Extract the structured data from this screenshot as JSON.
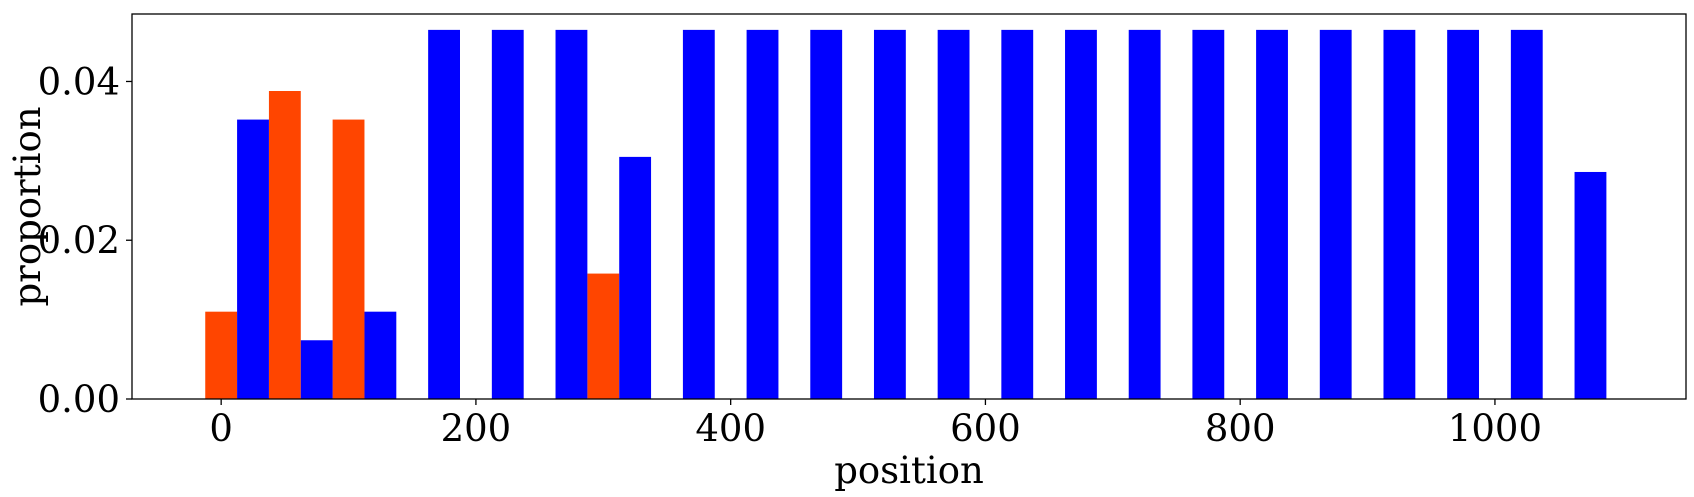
{
  "chart_data": {
    "type": "bar",
    "xlabel": "position",
    "ylabel": "proportion",
    "xlim": [
      -70,
      1150
    ],
    "ylim": [
      0,
      0.0485
    ],
    "grid": false,
    "bar_width": 25,
    "xticks": [
      0,
      200,
      400,
      600,
      800,
      1000
    ],
    "xtick_labels": [
      "0",
      "200",
      "400",
      "600",
      "800",
      "1000"
    ],
    "yticks": [
      0.0,
      0.02,
      0.04
    ],
    "ytick_labels": [
      "0.00",
      "0.02",
      "0.04"
    ],
    "series": [
      {
        "color": "#ff4500",
        "points": [
          {
            "x": 0,
            "y": 0.011
          },
          {
            "x": 50,
            "y": 0.0388
          },
          {
            "x": 100,
            "y": 0.0352
          },
          {
            "x": 300,
            "y": 0.0158
          }
        ]
      },
      {
        "color": "#0000ff",
        "points": [
          {
            "x": 25,
            "y": 0.0352
          },
          {
            "x": 75,
            "y": 0.0074
          },
          {
            "x": 125,
            "y": 0.011
          },
          {
            "x": 175,
            "y": 0.0465
          },
          {
            "x": 225,
            "y": 0.0465
          },
          {
            "x": 275,
            "y": 0.0465
          },
          {
            "x": 325,
            "y": 0.0305
          },
          {
            "x": 375,
            "y": 0.0465
          },
          {
            "x": 425,
            "y": 0.0465
          },
          {
            "x": 475,
            "y": 0.0465
          },
          {
            "x": 525,
            "y": 0.0465
          },
          {
            "x": 575,
            "y": 0.0465
          },
          {
            "x": 625,
            "y": 0.0465
          },
          {
            "x": 675,
            "y": 0.0465
          },
          {
            "x": 725,
            "y": 0.0465
          },
          {
            "x": 775,
            "y": 0.0465
          },
          {
            "x": 825,
            "y": 0.0465
          },
          {
            "x": 875,
            "y": 0.0465
          },
          {
            "x": 925,
            "y": 0.0465
          },
          {
            "x": 975,
            "y": 0.0465
          },
          {
            "x": 1025,
            "y": 0.0465
          },
          {
            "x": 1075,
            "y": 0.0286
          }
        ]
      }
    ]
  }
}
